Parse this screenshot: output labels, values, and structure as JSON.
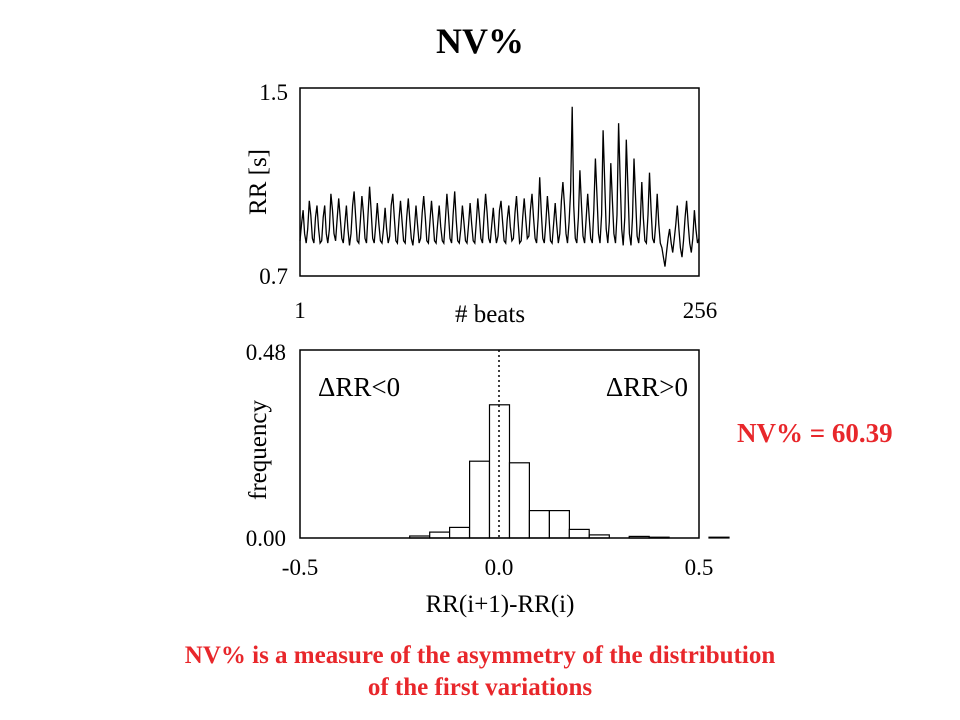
{
  "title": "NV%",
  "result_label": "NV% = 60.39",
  "caption": {
    "line1": "NV% is a measure of the asymmetry of the distribution",
    "line2": "of the first variations"
  },
  "colors": {
    "accent": "#e8272b",
    "ink": "#000000",
    "background": "#ffffff"
  },
  "chart_data": [
    {
      "type": "line",
      "title": "",
      "xlabel": "# beats",
      "ylabel": "RR [s]",
      "xlim": [
        1,
        256
      ],
      "ylim": [
        0.7,
        1.5
      ],
      "x_tick_labels": [
        "1",
        "256"
      ],
      "y_tick_labels": [
        "1.5",
        "0.7"
      ],
      "grid": false,
      "series": [
        {
          "values": [
            0.85,
            0.92,
            0.98,
            0.88,
            0.84,
            0.9,
            1.02,
            0.96,
            0.86,
            0.84,
            0.95,
            1.0,
            0.9,
            0.84,
            0.85,
            0.95,
            1.0,
            0.88,
            0.84,
            0.9,
            1.05,
            0.98,
            0.88,
            0.85,
            0.94,
            1.03,
            0.95,
            0.86,
            0.84,
            0.92,
            1.0,
            0.9,
            0.83,
            0.88,
            1.0,
            1.06,
            0.95,
            0.85,
            0.84,
            0.93,
            1.04,
            0.97,
            0.86,
            0.84,
            0.96,
            1.08,
            0.98,
            0.86,
            0.84,
            0.92,
            1.01,
            0.92,
            0.85,
            0.84,
            0.9,
            0.99,
            0.9,
            0.84,
            0.87,
            1.0,
            1.05,
            0.95,
            0.85,
            0.84,
            0.94,
            1.02,
            0.93,
            0.85,
            0.84,
            0.95,
            1.03,
            0.94,
            0.86,
            0.83,
            0.9,
            1.0,
            0.92,
            0.84,
            0.86,
            0.97,
            1.04,
            0.95,
            0.85,
            0.84,
            0.93,
            1.02,
            0.94,
            0.85,
            0.84,
            0.92,
            1.0,
            0.91,
            0.85,
            0.84,
            0.94,
            1.05,
            0.96,
            0.86,
            0.84,
            0.96,
            1.06,
            0.94,
            0.85,
            0.84,
            0.9,
            1.0,
            0.93,
            0.85,
            0.84,
            0.92,
            1.01,
            0.92,
            0.85,
            0.84,
            0.93,
            1.03,
            0.95,
            0.86,
            0.84,
            0.95,
            1.05,
            0.97,
            0.86,
            0.84,
            0.92,
            0.99,
            0.9,
            0.84,
            0.87,
            0.98,
            1.02,
            0.93,
            0.85,
            0.84,
            0.94,
            1.0,
            0.91,
            0.85,
            0.86,
            0.97,
            1.04,
            0.93,
            0.84,
            0.85,
            0.95,
            1.03,
            0.94,
            0.86,
            0.87,
            0.98,
            1.05,
            0.95,
            0.86,
            0.84,
            0.95,
            1.12,
            0.97,
            0.86,
            0.84,
            0.93,
            1.04,
            0.95,
            0.85,
            0.84,
            0.92,
            1.01,
            0.92,
            0.84,
            0.88,
            1.02,
            1.1,
            1.0,
            0.88,
            0.84,
            0.93,
            1.06,
            1.42,
            1.0,
            0.86,
            0.84,
            0.95,
            1.15,
            1.0,
            0.87,
            0.84,
            0.94,
            1.05,
            0.95,
            0.86,
            0.84,
            0.98,
            1.2,
            1.05,
            0.88,
            0.84,
            0.96,
            1.32,
            1.1,
            0.9,
            0.84,
            0.93,
            1.18,
            1.02,
            0.88,
            0.84,
            0.96,
            1.35,
            1.12,
            0.9,
            0.83,
            0.95,
            1.28,
            1.08,
            0.88,
            0.83,
            0.95,
            1.2,
            1.03,
            0.87,
            0.84,
            0.92,
            1.1,
            0.95,
            0.85,
            0.84,
            0.96,
            1.14,
            0.98,
            0.86,
            0.84,
            0.92,
            1.05,
            0.92,
            0.84,
            0.82,
            0.78,
            0.74,
            0.8,
            0.86,
            0.9,
            0.84,
            0.8,
            0.86,
            0.92,
            1.0,
            0.9,
            0.82,
            0.78,
            0.85,
            0.95,
            1.02,
            0.92,
            0.84,
            0.8,
            0.86,
            0.98,
            0.9,
            0.84,
            0.86
          ]
        }
      ]
    },
    {
      "type": "bar",
      "title": "",
      "xlabel": "RR(i+1)-RR(i)",
      "ylabel": "frequency",
      "xlim": [
        -0.5,
        0.5
      ],
      "ylim": [
        0.0,
        0.48
      ],
      "x_tick_labels": [
        "-0.5",
        "0.0",
        "0.5"
      ],
      "y_tick_labels": [
        "0.48",
        "0.00"
      ],
      "annotations": [
        "ΔRR<0",
        "ΔRR>0"
      ],
      "reference_line": {
        "x": 0.0,
        "style": "dotted"
      },
      "grid": false,
      "bins": [
        {
          "x0": -0.225,
          "x1": -0.175,
          "value": 0.005
        },
        {
          "x0": -0.175,
          "x1": -0.125,
          "value": 0.015
        },
        {
          "x0": -0.125,
          "x1": -0.075,
          "value": 0.027
        },
        {
          "x0": -0.075,
          "x1": -0.025,
          "value": 0.196
        },
        {
          "x0": -0.025,
          "x1": 0.025,
          "value": 0.34
        },
        {
          "x0": 0.025,
          "x1": 0.075,
          "value": 0.192
        },
        {
          "x0": 0.075,
          "x1": 0.125,
          "value": 0.07
        },
        {
          "x0": 0.125,
          "x1": 0.175,
          "value": 0.07
        },
        {
          "x0": 0.175,
          "x1": 0.225,
          "value": 0.022
        },
        {
          "x0": 0.225,
          "x1": 0.275,
          "value": 0.008
        },
        {
          "x0": 0.325,
          "x1": 0.375,
          "value": 0.004
        },
        {
          "x0": 0.375,
          "x1": 0.425,
          "value": 0.002
        },
        {
          "x0": 0.525,
          "x1": 0.575,
          "value": 0.002
        }
      ]
    }
  ]
}
